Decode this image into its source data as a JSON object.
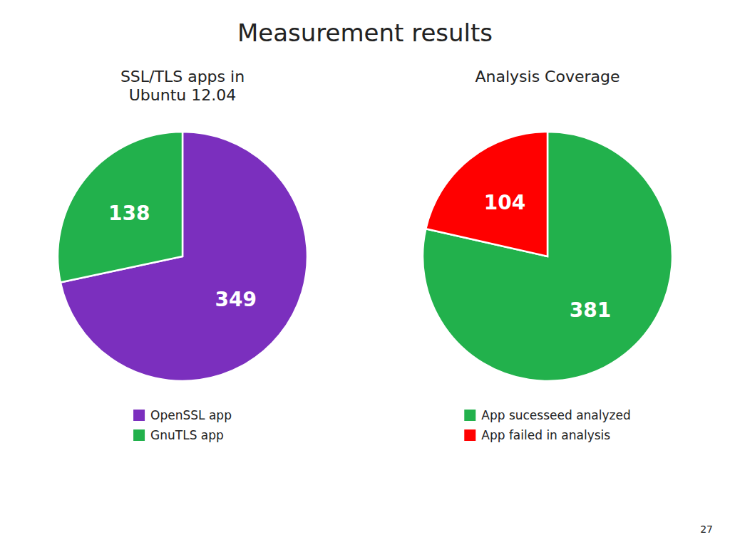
{
  "title": "Measurement results",
  "annotations": [
    "27"
  ],
  "chart_data": [
    {
      "type": "pie",
      "subtitle": "SSL/TLS apps in\nUbuntu 12.04",
      "categories": [
        "OpenSSL app",
        "GnuTLS app"
      ],
      "values": [
        349,
        138
      ],
      "colors": [
        "#7B2FBE",
        "#22B14C"
      ],
      "data_labels": true,
      "legend": "bottom"
    },
    {
      "type": "pie",
      "subtitle": "Analysis Coverage",
      "categories": [
        "App sucesseed analyzed",
        "App failed in analysis"
      ],
      "values": [
        381,
        104
      ],
      "colors": [
        "#22B14C",
        "#FF0000"
      ],
      "data_labels": true,
      "legend": "bottom"
    }
  ]
}
